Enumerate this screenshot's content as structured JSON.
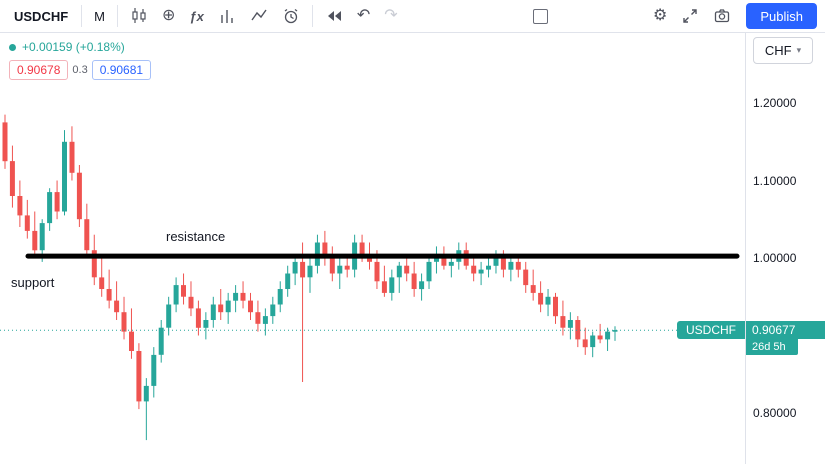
{
  "toolbar": {
    "symbol": "USDCHF",
    "interval": "M",
    "publish_label": "Publish"
  },
  "icons": {
    "compare": "⊕",
    "undo": "↶",
    "redo": "↷",
    "settings": "⚙",
    "indicators": "ƒx",
    "caret": "▾"
  },
  "legend": {
    "change_text": "+0.00159 (+0.18%)",
    "bid": "0.90678",
    "spread": "0.3",
    "ask": "0.90681"
  },
  "axis": {
    "currency_label": "CHF",
    "ticks": [
      {
        "label": "1.20000",
        "price": 1.2
      },
      {
        "label": "1.10000",
        "price": 1.1
      },
      {
        "label": "1.00000",
        "price": 1.0
      },
      {
        "label": "0.80000",
        "price": 0.8
      }
    ]
  },
  "price_label": {
    "symbol": "USDCHF",
    "price": "0.90677",
    "countdown": "26d 5h"
  },
  "colors": {
    "up": "#26a69a",
    "down": "#ef5350",
    "accent": "#26a69a",
    "publish_blue": "#2962ff",
    "bid_red": "#f23645",
    "ask_blue": "#2962ff",
    "trendline_black": "#000000"
  },
  "chart_data": {
    "type": "candlestick",
    "title": "USDCHF monthly candlestick chart",
    "symbol": "USDCHF",
    "interval": "M",
    "ylim_visible": [
      0.73,
      1.29
    ],
    "grid": false,
    "current_price": 0.90677,
    "annotations": {
      "resistance_label": "resistance",
      "support_label": "support",
      "line_price": 1.0025,
      "line_style": "thick horizontal black line at ~1.00000"
    },
    "candles": [
      [
        1.175,
        1.185,
        1.115,
        1.125
      ],
      [
        1.125,
        1.145,
        1.065,
        1.08
      ],
      [
        1.08,
        1.1,
        1.04,
        1.055
      ],
      [
        1.055,
        1.075,
        1.025,
        1.035
      ],
      [
        1.035,
        1.06,
        1.0,
        1.01
      ],
      [
        1.01,
        1.05,
        0.995,
        1.045
      ],
      [
        1.045,
        1.09,
        1.035,
        1.085
      ],
      [
        1.085,
        1.1,
        1.05,
        1.06
      ],
      [
        1.06,
        1.165,
        1.055,
        1.15
      ],
      [
        1.15,
        1.17,
        1.1,
        1.11
      ],
      [
        1.11,
        1.12,
        1.04,
        1.05
      ],
      [
        1.05,
        1.07,
        1.0,
        1.01
      ],
      [
        1.01,
        1.03,
        0.965,
        0.975
      ],
      [
        0.975,
        1.0,
        0.95,
        0.96
      ],
      [
        0.96,
        0.985,
        0.935,
        0.945
      ],
      [
        0.945,
        0.97,
        0.92,
        0.93
      ],
      [
        0.93,
        0.95,
        0.895,
        0.905
      ],
      [
        0.905,
        0.935,
        0.87,
        0.88
      ],
      [
        0.88,
        0.89,
        0.805,
        0.815
      ],
      [
        0.815,
        0.845,
        0.765,
        0.835
      ],
      [
        0.835,
        0.885,
        0.82,
        0.875
      ],
      [
        0.875,
        0.92,
        0.865,
        0.91
      ],
      [
        0.91,
        0.95,
        0.9,
        0.94
      ],
      [
        0.94,
        0.975,
        0.93,
        0.965
      ],
      [
        0.965,
        0.98,
        0.94,
        0.95
      ],
      [
        0.95,
        0.97,
        0.925,
        0.935
      ],
      [
        0.935,
        0.945,
        0.9,
        0.91
      ],
      [
        0.91,
        0.93,
        0.895,
        0.92
      ],
      [
        0.92,
        0.95,
        0.91,
        0.94
      ],
      [
        0.94,
        0.96,
        0.92,
        0.93
      ],
      [
        0.93,
        0.955,
        0.915,
        0.945
      ],
      [
        0.945,
        0.965,
        0.93,
        0.955
      ],
      [
        0.955,
        0.97,
        0.935,
        0.945
      ],
      [
        0.945,
        0.955,
        0.92,
        0.93
      ],
      [
        0.93,
        0.945,
        0.905,
        0.915
      ],
      [
        0.915,
        0.935,
        0.9,
        0.925
      ],
      [
        0.925,
        0.95,
        0.915,
        0.94
      ],
      [
        0.94,
        0.97,
        0.93,
        0.96
      ],
      [
        0.96,
        0.99,
        0.95,
        0.98
      ],
      [
        0.98,
        1.005,
        0.965,
        0.995
      ],
      [
        0.995,
        1.02,
        0.84,
        0.975
      ],
      [
        0.975,
        1.0,
        0.955,
        0.99
      ],
      [
        0.99,
        1.03,
        0.98,
        1.02
      ],
      [
        1.02,
        1.035,
        0.99,
        1.0
      ],
      [
        1.0,
        1.015,
        0.97,
        0.98
      ],
      [
        0.98,
        1.0,
        0.96,
        0.99
      ],
      [
        0.99,
        1.005,
        0.975,
        0.985
      ],
      [
        0.985,
        1.03,
        0.975,
        1.02
      ],
      [
        1.02,
        1.03,
        0.995,
        1.005
      ],
      [
        1.005,
        1.02,
        0.985,
        0.995
      ],
      [
        0.995,
        1.01,
        0.96,
        0.97
      ],
      [
        0.97,
        0.99,
        0.95,
        0.955
      ],
      [
        0.955,
        0.985,
        0.945,
        0.975
      ],
      [
        0.975,
        0.995,
        0.955,
        0.99
      ],
      [
        0.99,
        1.005,
        0.97,
        0.98
      ],
      [
        0.98,
        0.995,
        0.95,
        0.96
      ],
      [
        0.96,
        0.98,
        0.945,
        0.97
      ],
      [
        0.97,
        1.0,
        0.96,
        0.995
      ],
      [
        0.995,
        1.015,
        0.98,
        1.005
      ],
      [
        1.005,
        1.015,
        0.985,
        0.99
      ],
      [
        0.99,
        1.005,
        0.975,
        0.995
      ],
      [
        0.995,
        1.02,
        0.985,
        1.01
      ],
      [
        1.01,
        1.02,
        0.985,
        0.99
      ],
      [
        0.99,
        1.0,
        0.97,
        0.98
      ],
      [
        0.98,
        0.995,
        0.965,
        0.985
      ],
      [
        0.985,
        1.0,
        0.975,
        0.99
      ],
      [
        0.99,
        1.01,
        0.98,
        1.0
      ],
      [
        1.0,
        1.01,
        0.975,
        0.985
      ],
      [
        0.985,
        1.0,
        0.97,
        0.995
      ],
      [
        0.995,
        1.005,
        0.975,
        0.985
      ],
      [
        0.985,
        0.995,
        0.955,
        0.965
      ],
      [
        0.965,
        0.985,
        0.945,
        0.955
      ],
      [
        0.955,
        0.97,
        0.93,
        0.94
      ],
      [
        0.94,
        0.96,
        0.925,
        0.95
      ],
      [
        0.95,
        0.955,
        0.915,
        0.925
      ],
      [
        0.925,
        0.945,
        0.9,
        0.91
      ],
      [
        0.91,
        0.93,
        0.895,
        0.92
      ],
      [
        0.92,
        0.925,
        0.885,
        0.895
      ],
      [
        0.895,
        0.91,
        0.875,
        0.885
      ],
      [
        0.885,
        0.905,
        0.872,
        0.9
      ],
      [
        0.9,
        0.915,
        0.89,
        0.895
      ],
      [
        0.895,
        0.91,
        0.88,
        0.905
      ],
      [
        0.905,
        0.912,
        0.893,
        0.907
      ]
    ]
  }
}
